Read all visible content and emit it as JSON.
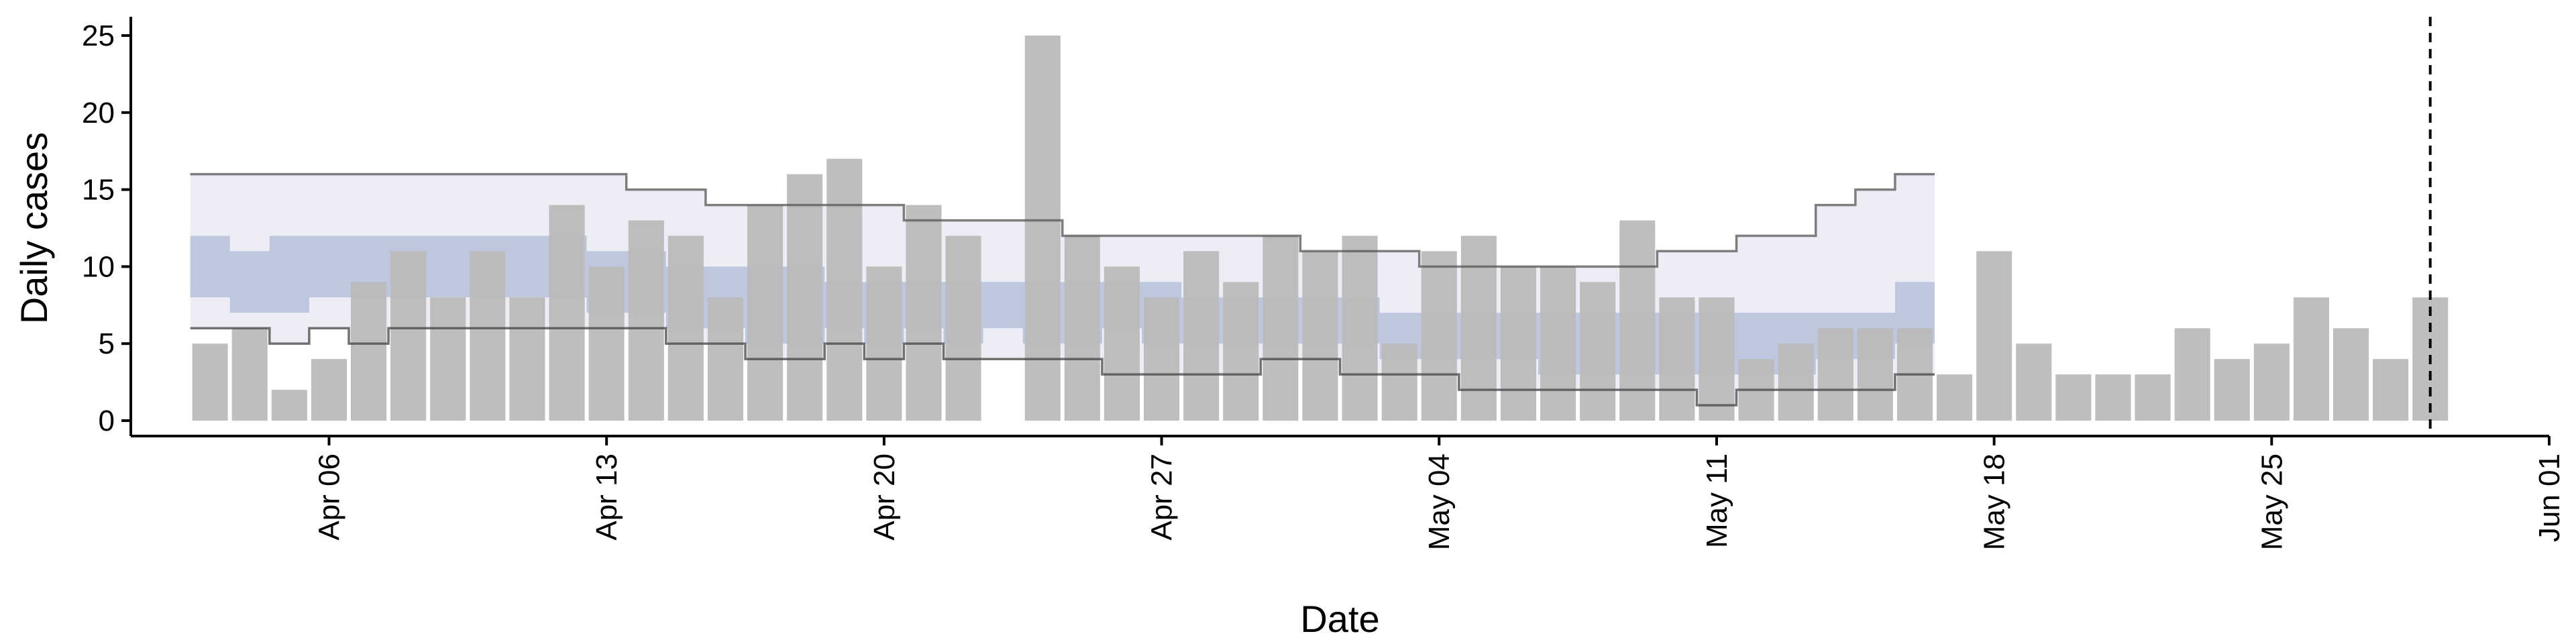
{
  "chart_data": {
    "type": "bar",
    "title": "",
    "xlabel": "Date",
    "ylabel": "Daily cases",
    "x_range": [
      "2020-04-01",
      "2020-06-01"
    ],
    "ylim": [
      -1,
      26
    ],
    "yticks": [
      0,
      5,
      10,
      15,
      20,
      25
    ],
    "xticks": [
      {
        "date": "2020-04-06",
        "label": "Apr 06"
      },
      {
        "date": "2020-04-13",
        "label": "Apr 13"
      },
      {
        "date": "2020-04-20",
        "label": "Apr 20"
      },
      {
        "date": "2020-04-27",
        "label": "Apr 27"
      },
      {
        "date": "2020-05-04",
        "label": "May 04"
      },
      {
        "date": "2020-05-11",
        "label": "May 11"
      },
      {
        "date": "2020-05-18",
        "label": "May 18"
      },
      {
        "date": "2020-05-25",
        "label": "May 25"
      },
      {
        "date": "2020-06-01",
        "label": "Jun 01"
      }
    ],
    "grid": false,
    "bar_series": {
      "start_date": "2020-04-03",
      "values": [
        5,
        6,
        2,
        4,
        9,
        11,
        8,
        11,
        8,
        14,
        10,
        13,
        12,
        8,
        14,
        16,
        17,
        10,
        14,
        12,
        null,
        25,
        12,
        10,
        8,
        11,
        9,
        12,
        11,
        12,
        5,
        11,
        12,
        10,
        10,
        9,
        13,
        8,
        8,
        4,
        5,
        6,
        6,
        6,
        3,
        11,
        5,
        3,
        3,
        3,
        6,
        4,
        5,
        8,
        6,
        4,
        8
      ],
      "color": "#bababa"
    },
    "bands": {
      "start_date": "2020-04-03",
      "outer_band_90": {
        "lower": [
          6,
          6,
          5,
          6,
          5,
          6,
          6,
          6,
          6,
          6,
          6,
          6,
          5,
          5,
          4,
          4,
          5,
          4,
          5,
          4,
          4,
          4,
          4,
          3,
          3,
          3,
          3,
          4,
          4,
          3,
          3,
          3,
          2,
          2,
          2,
          2,
          2,
          2,
          1,
          2,
          2,
          2,
          2,
          3
        ],
        "upper": [
          16,
          16,
          16,
          16,
          16,
          16,
          16,
          16,
          16,
          16,
          16,
          15,
          15,
          14,
          14,
          14,
          14,
          14,
          13,
          13,
          13,
          13,
          12,
          12,
          12,
          12,
          12,
          12,
          11,
          11,
          11,
          10,
          10,
          10,
          10,
          10,
          10,
          11,
          11,
          12,
          12,
          14,
          15,
          16
        ],
        "color": "#dfe1ee"
      },
      "inner_band_50": {
        "lower": [
          8,
          7,
          7,
          8,
          8,
          8,
          8,
          8,
          8,
          8,
          7,
          7,
          6,
          6,
          5,
          5,
          6,
          5,
          6,
          5,
          6,
          5,
          5,
          6,
          5,
          5,
          5,
          5,
          5,
          5,
          4,
          4,
          4,
          4,
          3,
          3,
          3,
          3,
          3,
          3,
          3,
          4,
          4,
          5
        ],
        "upper": [
          12,
          11,
          12,
          12,
          12,
          12,
          12,
          12,
          12,
          12,
          11,
          11,
          10,
          10,
          10,
          10,
          9,
          9,
          9,
          9,
          9,
          9,
          9,
          9,
          9,
          8,
          8,
          8,
          8,
          8,
          7,
          7,
          7,
          7,
          7,
          7,
          7,
          7,
          7,
          7,
          7,
          7,
          7,
          9
        ],
        "color": "#b7c0da"
      }
    },
    "vertical_reference_line": {
      "date": "2020-05-29",
      "style": "dashed",
      "color": "#000000"
    }
  }
}
